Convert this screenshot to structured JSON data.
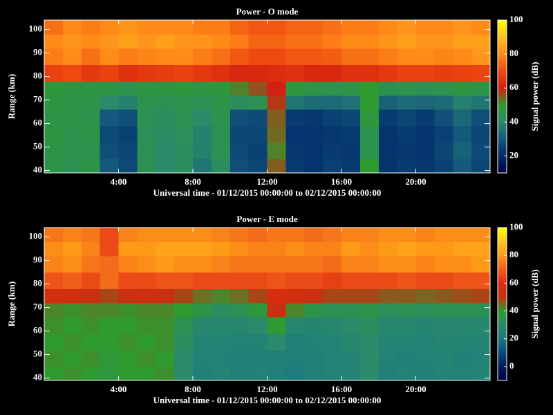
{
  "chart_data": [
    {
      "type": "heatmap",
      "title": "Power - O mode",
      "xlabel": "Universal time - 01/12/2015 00:00:00 to 02/12/2015 00:00:00",
      "ylabel": "Range (km)",
      "colorbar_label": "Signal power (dB)",
      "x": [
        0,
        1,
        2,
        3,
        4,
        5,
        6,
        7,
        8,
        9,
        10,
        11,
        12,
        13,
        14,
        15,
        16,
        17,
        18,
        19,
        20,
        21,
        22,
        23,
        24
      ],
      "y": [
        39,
        45,
        52,
        59,
        66,
        72,
        78,
        85,
        92,
        98,
        104
      ],
      "z": [
        [
          46,
          44,
          46,
          30,
          27,
          44,
          40,
          42,
          36,
          42,
          28,
          26,
          55,
          24,
          22,
          25,
          24,
          50,
          22,
          24,
          23,
          25,
          30,
          26
        ],
        [
          46,
          45,
          45,
          28,
          26,
          44,
          40,
          42,
          38,
          44,
          27,
          25,
          52,
          23,
          22,
          24,
          23,
          45,
          22,
          23,
          22,
          26,
          32,
          27
        ],
        [
          47,
          45,
          46,
          27,
          25,
          43,
          41,
          43,
          38,
          44,
          26,
          26,
          54,
          22,
          22,
          23,
          24,
          45,
          22,
          24,
          22,
          25,
          30,
          26
        ],
        [
          46,
          46,
          45,
          30,
          28,
          44,
          42,
          44,
          40,
          45,
          28,
          27,
          55,
          24,
          23,
          25,
          26,
          48,
          24,
          26,
          24,
          28,
          33,
          28
        ],
        [
          47,
          46,
          46,
          40,
          38,
          45,
          44,
          45,
          44,
          46,
          42,
          44,
          58,
          36,
          34,
          34,
          35,
          50,
          32,
          34,
          33,
          34,
          38,
          36
        ],
        [
          48,
          47,
          47,
          46,
          45,
          47,
          47,
          48,
          47,
          48,
          52,
          56,
          60,
          48,
          46,
          45,
          46,
          50,
          44,
          45,
          44,
          45,
          47,
          46
        ],
        [
          68,
          70,
          66,
          68,
          64,
          66,
          67,
          68,
          66,
          64,
          62,
          62,
          63,
          64,
          62,
          62,
          64,
          64,
          66,
          68,
          68,
          67,
          68,
          69
        ],
        [
          78,
          80,
          76,
          80,
          78,
          79,
          80,
          80,
          78,
          76,
          72,
          70,
          70,
          72,
          72,
          73,
          76,
          76,
          78,
          80,
          80,
          79,
          80,
          82
        ],
        [
          80,
          82,
          80,
          82,
          84,
          82,
          84,
          82,
          82,
          80,
          78,
          74,
          74,
          76,
          76,
          78,
          80,
          80,
          82,
          84,
          82,
          82,
          84,
          84
        ],
        [
          76,
          80,
          78,
          80,
          82,
          80,
          80,
          80,
          78,
          78,
          74,
          72,
          72,
          74,
          74,
          76,
          78,
          78,
          80,
          82,
          80,
          80,
          82,
          80
        ]
      ],
      "xlim": [
        0,
        24
      ],
      "ylim": [
        39,
        104
      ],
      "xticks": [
        {
          "value": 4,
          "label": "4:00"
        },
        {
          "value": 8,
          "label": "8:00"
        },
        {
          "value": 12,
          "label": "12:00"
        },
        {
          "value": 16,
          "label": "16:00"
        },
        {
          "value": 20,
          "label": "20:00"
        }
      ],
      "yticks": [
        40,
        50,
        60,
        70,
        80,
        90,
        100
      ],
      "zlim": [
        10,
        100
      ],
      "zticks": [
        20,
        40,
        60,
        80,
        100
      ],
      "colors": [
        "#000040",
        "#002a6a",
        "#14587c",
        "#2a8a6a",
        "#2e9a30",
        "#d42010",
        "#ee4a10",
        "#ff8a18",
        "#ffc020",
        "#ffff00"
      ]
    },
    {
      "type": "heatmap",
      "title": "Power - E mode",
      "xlabel": "Universal time - 01/12/2015 00:00:00 to 02/12/2015 00:00:00",
      "ylabel": "Range (km)",
      "colorbar_label": "Signal power (dB)",
      "x": [
        0,
        1,
        2,
        3,
        4,
        5,
        6,
        7,
        8,
        9,
        10,
        11,
        12,
        13,
        14,
        15,
        16,
        17,
        18,
        19,
        20,
        21,
        22,
        23,
        24
      ],
      "y": [
        39,
        45,
        52,
        59,
        66,
        72,
        78,
        85,
        92,
        98,
        104
      ],
      "z": [
        [
          40,
          41,
          40,
          38,
          40,
          40,
          41,
          30,
          24,
          26,
          24,
          25,
          23,
          22,
          24,
          25,
          26,
          30,
          24,
          25,
          24,
          26,
          25,
          26
        ],
        [
          41,
          40,
          41,
          39,
          40,
          41,
          40,
          30,
          25,
          25,
          24,
          24,
          24,
          23,
          24,
          25,
          26,
          30,
          25,
          24,
          25,
          26,
          24,
          25
        ],
        [
          40,
          41,
          40,
          40,
          41,
          40,
          41,
          32,
          26,
          26,
          25,
          25,
          30,
          24,
          25,
          26,
          28,
          30,
          26,
          26,
          25,
          27,
          26,
          26
        ],
        [
          41,
          40,
          41,
          40,
          40,
          41,
          41,
          34,
          28,
          28,
          28,
          30,
          40,
          28,
          27,
          28,
          30,
          32,
          28,
          28,
          27,
          28,
          28,
          28
        ],
        [
          42,
          41,
          42,
          42,
          41,
          42,
          42,
          40,
          36,
          32,
          34,
          38,
          50,
          42,
          36,
          34,
          34,
          36,
          33,
          34,
          33,
          34,
          34,
          34
        ],
        [
          54,
          52,
          50,
          48,
          50,
          52,
          50,
          48,
          44,
          42,
          44,
          48,
          56,
          54,
          50,
          48,
          48,
          48,
          46,
          46,
          45,
          46,
          47,
          48
        ],
        [
          68,
          70,
          66,
          72,
          66,
          66,
          68,
          68,
          66,
          66,
          66,
          66,
          68,
          66,
          66,
          64,
          66,
          66,
          66,
          68,
          66,
          66,
          68,
          68
        ],
        [
          76,
          78,
          74,
          72,
          76,
          78,
          80,
          78,
          78,
          76,
          74,
          74,
          74,
          74,
          74,
          72,
          76,
          76,
          78,
          78,
          76,
          78,
          78,
          80
        ],
        [
          78,
          80,
          76,
          66,
          80,
          80,
          82,
          82,
          82,
          80,
          78,
          76,
          76,
          78,
          76,
          76,
          80,
          78,
          80,
          82,
          80,
          80,
          82,
          82
        ],
        [
          74,
          76,
          74,
          66,
          76,
          78,
          78,
          78,
          78,
          76,
          74,
          72,
          74,
          74,
          72,
          74,
          76,
          76,
          78,
          78,
          76,
          78,
          78,
          78
        ]
      ],
      "xlim": [
        0,
        24
      ],
      "ylim": [
        39,
        104
      ],
      "xticks": [
        {
          "value": 4,
          "label": "4:00"
        },
        {
          "value": 8,
          "label": "8:00"
        },
        {
          "value": 12,
          "label": "12:00"
        },
        {
          "value": 16,
          "label": "16:00"
        },
        {
          "value": 20,
          "label": "20:00"
        }
      ],
      "yticks": [
        40,
        50,
        60,
        70,
        80,
        90,
        100
      ],
      "zlim": [
        -10,
        100
      ],
      "zticks": [
        0,
        20,
        40,
        60,
        80,
        100
      ],
      "colors": [
        "#000040",
        "#001a5a",
        "#0a4a7c",
        "#1a7a80",
        "#2a8a6a",
        "#2e9a30",
        "#c83010",
        "#e02a10",
        "#f0601a",
        "#ff9a18",
        "#ffc820",
        "#ffff00"
      ]
    }
  ]
}
